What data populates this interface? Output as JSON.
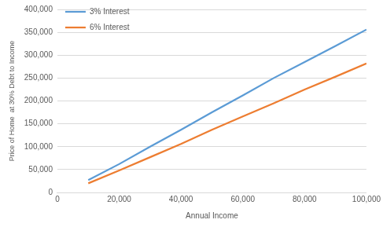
{
  "chart_data": {
    "type": "line",
    "x_label": "Annual Income",
    "y_label": "Price of Home  at 30% Debt to Income",
    "x": [
      10000,
      20000,
      30000,
      40000,
      50000,
      60000,
      70000,
      80000,
      90000,
      100000
    ],
    "series": [
      {
        "name": "3% Interest",
        "color": "#5b9bd5",
        "marker": "none",
        "line_style": "solid",
        "values": [
          27000,
          62000,
          100000,
          137000,
          175000,
          212000,
          250000,
          285000,
          320000,
          356000
        ]
      },
      {
        "name": "6% Interest",
        "color": "#ed7d31",
        "marker": "none",
        "line_style": "solid",
        "values": [
          20000,
          48000,
          77000,
          106000,
          137000,
          166000,
          195000,
          225000,
          253000,
          282000
        ]
      }
    ],
    "xlim": [
      0,
      100000
    ],
    "xticks": [
      0,
      {
        "value": 20000,
        "label": "20,000"
      },
      {
        "value": 40000,
        "label": "40,000"
      },
      {
        "value": 60000,
        "label": "60,000"
      },
      {
        "value": 80000,
        "label": "80,000"
      },
      {
        "value": 100000,
        "label": "100,000"
      }
    ],
    "ylim": [
      0,
      400000
    ],
    "yticks": [
      0,
      {
        "value": 50000,
        "label": "50,000"
      },
      {
        "value": 100000,
        "label": "100,000"
      },
      {
        "value": 150000,
        "label": "150,000"
      },
      {
        "value": 200000,
        "label": "200,000"
      },
      {
        "value": 250000,
        "label": "250,000"
      },
      {
        "value": 300000,
        "label": "300,000"
      },
      {
        "value": 350000,
        "label": "350,000"
      },
      {
        "value": 400000,
        "label": "400,000"
      }
    ],
    "grid": true,
    "legend": "top-left"
  }
}
